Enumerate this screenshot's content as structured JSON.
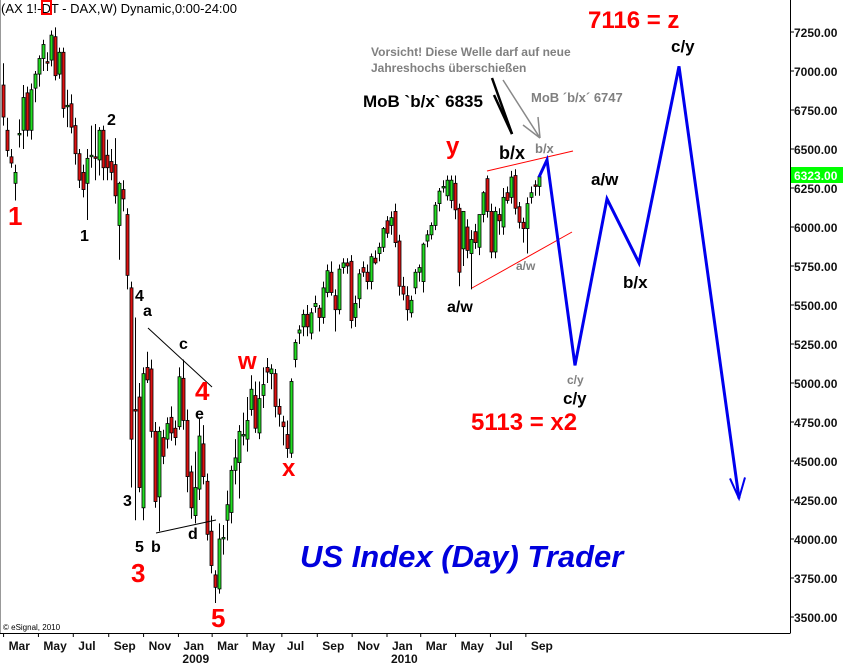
{
  "header": {
    "title": "(AX 1!-DT - DAX,W) Dynamic,0:00-24:00"
  },
  "copyright": "© eSignal, 2010",
  "brand": "US Index (Day) Trader",
  "colors": {
    "up": "#22dd22",
    "down": "#dd1111",
    "projection": "#0000ee",
    "wave_red": "#ff0000",
    "note_gray": "#808080",
    "brand_blue": "#0000dd",
    "price_tag": "#00ff00"
  },
  "price_tag": "6323.00",
  "wave_labels": [
    {
      "text": "1",
      "color": "red"
    },
    {
      "text": "1",
      "color": "black"
    },
    {
      "text": "2",
      "color": "black"
    },
    {
      "text": "4",
      "color": "black"
    },
    {
      "text": "a",
      "color": "black"
    },
    {
      "text": "c",
      "color": "black"
    },
    {
      "text": "4",
      "color": "red"
    },
    {
      "text": "e",
      "color": "black"
    },
    {
      "text": "3",
      "color": "black"
    },
    {
      "text": "5",
      "color": "black"
    },
    {
      "text": "b",
      "color": "black"
    },
    {
      "text": "d",
      "color": "black"
    },
    {
      "text": "3",
      "color": "red"
    },
    {
      "text": "5",
      "color": "red"
    },
    {
      "text": "w",
      "color": "red"
    },
    {
      "text": "x",
      "color": "red"
    },
    {
      "text": "y",
      "color": "red"
    },
    {
      "text": "b/x",
      "color": "black"
    },
    {
      "text": "b/x",
      "color": "gray"
    },
    {
      "text": "a/w",
      "color": "black"
    },
    {
      "text": "a/w",
      "color": "gray"
    },
    {
      "text": "c/y",
      "color": "gray"
    },
    {
      "text": "c/y",
      "color": "black"
    },
    {
      "text": "a/w",
      "color": "black"
    },
    {
      "text": "b/x",
      "color": "black"
    },
    {
      "text": "c/y",
      "color": "black"
    }
  ],
  "targets": {
    "x2": "5113 = x2",
    "z": "7116 = z"
  },
  "notes": {
    "mob_black": "MoB `b/x` 6835",
    "mob_gray": "MoB ´b/x´ 6747",
    "warning_line1": "Vorsicht! Diese Welle darf auf neue",
    "warning_line2": "Jahreshochs überschießen"
  },
  "chart_data": {
    "type": "candlestick",
    "symbol": "DAX",
    "interval": "W",
    "ylim": [
      3500,
      7250
    ],
    "yticks": [
      7250,
      7000,
      6750,
      6500,
      6250,
      6000,
      5750,
      5500,
      5250,
      5000,
      4750,
      4500,
      4250,
      4000,
      3750,
      3500
    ],
    "xticks": [
      {
        "date": "2008-03-01",
        "label": "Mar"
      },
      {
        "date": "2008-05-01",
        "label": "May"
      },
      {
        "date": "2008-07-01",
        "label": "Jul"
      },
      {
        "date": "2008-09-01",
        "label": "Sep"
      },
      {
        "date": "2008-11-01",
        "label": "Nov"
      },
      {
        "date": "2009-01-01",
        "label": "Jan",
        "year": "2009"
      },
      {
        "date": "2009-03-01",
        "label": "Mar"
      },
      {
        "date": "2009-05-01",
        "label": "May"
      },
      {
        "date": "2009-07-01",
        "label": "Jul"
      },
      {
        "date": "2009-09-01",
        "label": "Sep"
      },
      {
        "date": "2009-11-01",
        "label": "Nov"
      },
      {
        "date": "2010-01-01",
        "label": "Jan",
        "year": "2010"
      },
      {
        "date": "2010-03-01",
        "label": "Mar"
      },
      {
        "date": "2010-05-01",
        "label": "May"
      },
      {
        "date": "2010-07-01",
        "label": "Jul"
      },
      {
        "date": "2010-09-01",
        "label": "Sep"
      }
    ],
    "last_price": 6323.0,
    "candles_columns": [
      "date",
      "open",
      "high",
      "low",
      "close"
    ],
    "candles": [
      [
        "2008-02-29",
        6910,
        7050,
        6650,
        6705
      ],
      [
        "2008-03-07",
        6620,
        6700,
        6450,
        6490
      ],
      [
        "2008-03-14",
        6450,
        6500,
        6380,
        6410
      ],
      [
        "2008-03-21",
        6280,
        6400,
        6170,
        6350
      ],
      [
        "2008-03-28",
        6600,
        6690,
        6510,
        6600
      ],
      [
        "2008-04-04",
        6620,
        6910,
        6500,
        6830
      ],
      [
        "2008-04-11",
        6860,
        6900,
        6580,
        6620
      ],
      [
        "2008-04-18",
        6620,
        6920,
        6560,
        6880
      ],
      [
        "2008-04-25",
        6890,
        7000,
        6800,
        6980
      ],
      [
        "2008-05-02",
        6980,
        7100,
        6900,
        7080
      ],
      [
        "2008-05-09",
        7080,
        7200,
        7000,
        7170
      ],
      [
        "2008-05-16",
        7060,
        7120,
        7000,
        7050
      ],
      [
        "2008-05-23",
        7070,
        7260,
        7030,
        7230
      ],
      [
        "2008-05-30",
        7220,
        7280,
        6940,
        6970
      ],
      [
        "2008-06-06",
        6980,
        7150,
        6950,
        7120
      ],
      [
        "2008-06-13",
        7120,
        7150,
        6700,
        6760
      ],
      [
        "2008-06-20",
        6780,
        6880,
        6640,
        6780
      ],
      [
        "2008-06-27",
        6790,
        6850,
        6600,
        6640
      ],
      [
        "2008-07-04",
        6650,
        6700,
        6400,
        6470
      ],
      [
        "2008-07-11",
        6470,
        6500,
        6250,
        6300
      ],
      [
        "2008-07-18",
        6350,
        6400,
        6190,
        6240
      ],
      [
        "2008-07-25",
        6280,
        6500,
        6045,
        6440
      ],
      [
        "2008-08-01",
        6460,
        6650,
        6380,
        6460
      ],
      [
        "2008-08-08",
        6450,
        6660,
        6300,
        6440
      ],
      [
        "2008-08-15",
        6430,
        6640,
        6330,
        6620
      ],
      [
        "2008-08-22",
        6620,
        6650,
        6300,
        6380
      ],
      [
        "2008-08-29",
        6460,
        6560,
        6300,
        6380
      ],
      [
        "2008-09-05",
        6420,
        6500,
        6300,
        6350
      ],
      [
        "2008-09-12",
        6400,
        6570,
        6150,
        6200
      ],
      [
        "2008-09-19",
        6010,
        6290,
        5790,
        6280
      ],
      [
        "2008-09-26",
        6240,
        6300,
        6100,
        6180
      ],
      [
        "2008-10-03",
        6080,
        6120,
        5600,
        5690
      ],
      [
        "2008-10-10",
        5610,
        5650,
        4330,
        4640
      ],
      [
        "2008-10-17",
        4830,
        5420,
        4120,
        4820
      ],
      [
        "2008-10-24",
        4910,
        5000,
        4300,
        4330
      ],
      [
        "2008-10-31",
        4200,
        5100,
        4120,
        5060
      ],
      [
        "2008-11-07",
        5100,
        5200,
        5000,
        5020
      ],
      [
        "2008-11-14",
        5090,
        5150,
        4650,
        4690
      ],
      [
        "2008-11-21",
        4690,
        4750,
        4200,
        4240
      ],
      [
        "2008-11-28",
        4270,
        4720,
        4050,
        4690
      ],
      [
        "2008-12-05",
        4650,
        4700,
        4480,
        4530
      ],
      [
        "2008-12-12",
        4640,
        4780,
        4580,
        4740
      ],
      [
        "2008-12-19",
        4780,
        4850,
        4630,
        4680
      ],
      [
        "2008-12-26",
        4710,
        4760,
        4600,
        4650
      ],
      [
        "2009-01-02",
        4720,
        5100,
        4700,
        5040
      ],
      [
        "2009-01-09",
        5030,
        5150,
        4700,
        4760
      ],
      [
        "2009-01-16",
        4760,
        4830,
        4300,
        4400
      ],
      [
        "2009-01-23",
        4430,
        4470,
        4130,
        4200
      ],
      [
        "2009-01-30",
        4150,
        4560,
        4100,
        4330
      ],
      [
        "2009-02-06",
        4320,
        4770,
        4250,
        4660
      ],
      [
        "2009-02-13",
        4610,
        4730,
        4350,
        4400
      ],
      [
        "2009-02-20",
        4370,
        4420,
        3990,
        4030
      ],
      [
        "2009-02-27",
        4050,
        4150,
        3780,
        3830
      ],
      [
        "2009-03-06",
        3770,
        3800,
        3590,
        3690
      ],
      [
        "2009-03-13",
        3680,
        4100,
        3650,
        4000
      ],
      [
        "2009-03-20",
        4010,
        4090,
        3900,
        4010
      ],
      [
        "2009-03-27",
        4120,
        4310,
        3990,
        4220
      ],
      [
        "2009-04-03",
        4170,
        4470,
        4100,
        4440
      ],
      [
        "2009-04-10",
        4440,
        4640,
        4350,
        4520
      ],
      [
        "2009-04-17",
        4490,
        4730,
        4260,
        4690
      ],
      [
        "2009-04-24",
        4670,
        4810,
        4600,
        4670
      ],
      [
        "2009-05-01",
        4640,
        4910,
        4560,
        4760
      ],
      [
        "2009-05-08",
        4830,
        5050,
        4790,
        4960
      ],
      [
        "2009-05-15",
        4920,
        5010,
        4680,
        4710
      ],
      [
        "2009-05-22",
        4680,
        5010,
        4640,
        4900
      ],
      [
        "2009-05-29",
        4920,
        5100,
        4840,
        4990
      ],
      [
        "2009-06-05",
        5100,
        5160,
        5000,
        5070
      ],
      [
        "2009-06-12",
        5060,
        5120,
        4960,
        5090
      ],
      [
        "2009-06-19",
        5060,
        5090,
        4780,
        4850
      ],
      [
        "2009-06-26",
        4850,
        4900,
        4720,
        4800
      ],
      [
        "2009-07-03",
        4750,
        4790,
        4600,
        4720
      ],
      [
        "2009-07-10",
        4670,
        4760,
        4520,
        4580
      ],
      [
        "2009-07-17",
        4550,
        5030,
        4520,
        5010
      ],
      [
        "2009-07-24",
        5150,
        5280,
        5100,
        5260
      ],
      [
        "2009-07-31",
        5320,
        5370,
        5250,
        5340
      ],
      [
        "2009-08-07",
        5360,
        5470,
        5300,
        5440
      ],
      [
        "2009-08-14",
        5440,
        5500,
        5300,
        5360
      ],
      [
        "2009-08-21",
        5320,
        5480,
        5280,
        5450
      ],
      [
        "2009-08-28",
        5490,
        5560,
        5450,
        5510
      ],
      [
        "2009-09-04",
        5480,
        5500,
        5330,
        5420
      ],
      [
        "2009-09-11",
        5420,
        5650,
        5380,
        5610
      ],
      [
        "2009-09-18",
        5580,
        5760,
        5550,
        5720
      ],
      [
        "2009-09-25",
        5710,
        5780,
        5560,
        5580
      ],
      [
        "2009-10-02",
        5560,
        5600,
        5330,
        5470
      ],
      [
        "2009-10-09",
        5470,
        5760,
        5440,
        5730
      ],
      [
        "2009-10-16",
        5740,
        5800,
        5700,
        5770
      ],
      [
        "2009-10-23",
        5770,
        5800,
        5700,
        5750
      ],
      [
        "2009-10-30",
        5780,
        5820,
        5350,
        5400
      ],
      [
        "2009-11-06",
        5420,
        5560,
        5360,
        5510
      ],
      [
        "2009-11-13",
        5540,
        5730,
        5480,
        5700
      ],
      [
        "2009-11-20",
        5740,
        5780,
        5680,
        5710
      ],
      [
        "2009-11-27",
        5710,
        5760,
        5600,
        5650
      ],
      [
        "2009-12-04",
        5650,
        5830,
        5600,
        5810
      ],
      [
        "2009-12-11",
        5800,
        5850,
        5760,
        5770
      ],
      [
        "2009-12-18",
        5830,
        5900,
        5780,
        5870
      ],
      [
        "2009-12-25",
        5870,
        6000,
        5840,
        5990
      ],
      [
        "2010-01-01",
        6040,
        6070,
        5930,
        5960
      ],
      [
        "2010-01-08",
        6010,
        6100,
        5950,
        6060
      ],
      [
        "2010-01-15",
        6100,
        6150,
        5870,
        5900
      ],
      [
        "2010-01-22",
        5910,
        5950,
        5560,
        5620
      ],
      [
        "2010-01-29",
        5620,
        5680,
        5530,
        5570
      ],
      [
        "2010-02-05",
        5560,
        5620,
        5400,
        5470
      ],
      [
        "2010-02-12",
        5450,
        5560,
        5420,
        5530
      ],
      [
        "2010-02-19",
        5610,
        5730,
        5570,
        5710
      ],
      [
        "2010-02-26",
        5710,
        5760,
        5650,
        5740
      ],
      [
        "2010-03-05",
        5650,
        5900,
        5580,
        5890
      ],
      [
        "2010-03-12",
        5910,
        5980,
        5870,
        5950
      ],
      [
        "2010-03-19",
        5950,
        6030,
        5920,
        6010
      ],
      [
        "2010-03-26",
        6010,
        6160,
        5980,
        6140
      ],
      [
        "2010-04-02",
        6150,
        6250,
        6100,
        6230
      ],
      [
        "2010-04-09",
        6260,
        6300,
        6220,
        6260
      ],
      [
        "2010-04-16",
        6200,
        6330,
        6170,
        6300
      ],
      [
        "2010-04-23",
        6170,
        6330,
        6120,
        6300
      ],
      [
        "2010-04-30",
        6280,
        6330,
        6050,
        6110
      ],
      [
        "2010-05-07",
        6120,
        6150,
        5620,
        5710
      ],
      [
        "2010-05-14",
        5860,
        6100,
        5750,
        6100
      ],
      [
        "2010-05-21",
        6000,
        6050,
        5800,
        5850
      ],
      [
        "2010-05-28",
        5830,
        5980,
        5600,
        5920
      ],
      [
        "2010-06-04",
        5970,
        6020,
        5860,
        5900
      ],
      [
        "2010-06-11",
        5870,
        6080,
        5820,
        6080
      ],
      [
        "2010-06-18",
        6080,
        6230,
        6030,
        6220
      ],
      [
        "2010-06-25",
        6310,
        6330,
        6060,
        6100
      ],
      [
        "2010-07-02",
        6100,
        6150,
        5800,
        5840
      ],
      [
        "2010-07-09",
        5840,
        6130,
        5800,
        6100
      ],
      [
        "2010-07-16",
        6080,
        6120,
        5950,
        6040
      ],
      [
        "2010-07-23",
        6000,
        6250,
        5950,
        6190
      ],
      [
        "2010-07-30",
        6220,
        6260,
        6150,
        6170
      ],
      [
        "2010-08-06",
        6190,
        6360,
        6150,
        6320
      ],
      [
        "2010-08-13",
        6330,
        6370,
        6080,
        6120
      ],
      [
        "2010-08-20",
        6130,
        6160,
        5990,
        6030
      ],
      [
        "2010-08-27",
        6030,
        6060,
        5900,
        5990
      ],
      [
        "2010-09-03",
        5990,
        6190,
        5830,
        6150
      ],
      [
        "2010-09-10",
        6190,
        6260,
        6150,
        6220
      ],
      [
        "2010-09-17",
        6270,
        6300,
        6200,
        6260
      ],
      [
        "2010-09-24",
        6260,
        6340,
        6200,
        6323
      ]
    ],
    "projection": [
      [
        "2010-09-24",
        6320
      ],
      [
        "2010-10-08",
        6430
      ],
      [
        "2010-11-26",
        5113
      ],
      [
        "2011-01-21",
        6180
      ],
      [
        "2011-03-18",
        5770
      ],
      [
        "2011-05-27",
        7030
      ],
      [
        "2011-09-09",
        4260
      ]
    ]
  }
}
